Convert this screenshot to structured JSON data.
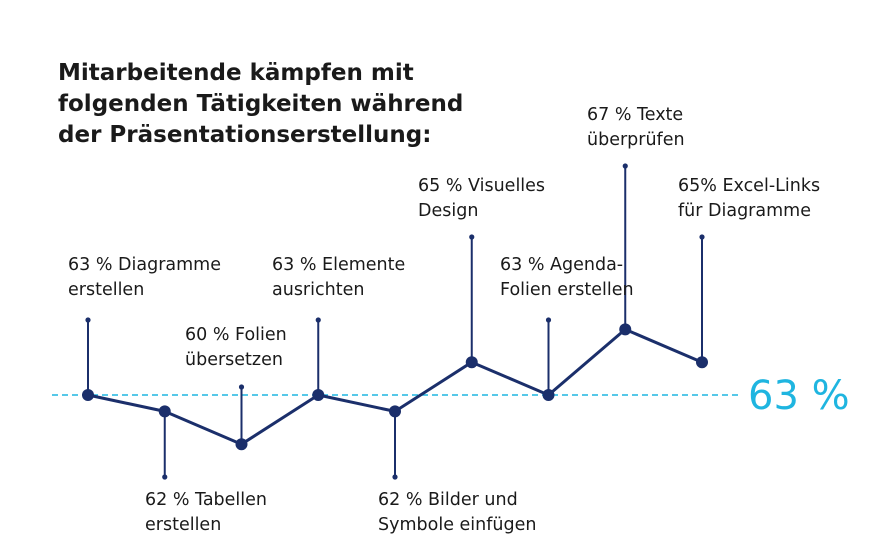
{
  "title_lines": [
    "Mitarbeitende kämpfen mit",
    "folgenden Tätigkeiten während",
    "der Präsentationserstellung:"
  ],
  "colors": {
    "line": "#1b2f6b",
    "average": "#1fb5e0",
    "text": "#1a1a1a"
  },
  "chart_data": {
    "type": "line",
    "title": "Mitarbeitende kämpfen mit folgenden Tätigkeiten während der Präsentationserstellung:",
    "ylim": [
      58,
      69
    ],
    "grid": false,
    "points": [
      {
        "value": 63,
        "label": [
          "63 % Diagramme",
          "erstellen"
        ],
        "label_side": "above"
      },
      {
        "value": 62,
        "label": [
          "62 % Tabellen",
          "erstellen"
        ],
        "label_side": "below"
      },
      {
        "value": 60,
        "label": [
          "60 % Folien",
          "übersetzen"
        ],
        "label_side": "above"
      },
      {
        "value": 63,
        "label": [
          "63 % Elemente",
          "ausrichten"
        ],
        "label_side": "above"
      },
      {
        "value": 62,
        "label": [
          "62 % Bilder und",
          "Symbole einfügen"
        ],
        "label_side": "below"
      },
      {
        "value": 65,
        "label": [
          "65 % Visuelles",
          "Design"
        ],
        "label_side": "above"
      },
      {
        "value": 63,
        "label": [
          "63 % Agenda-",
          "Folien erstellen"
        ],
        "label_side": "above"
      },
      {
        "value": 67,
        "label": [
          "67 % Texte",
          "überprüfen"
        ],
        "label_side": "above"
      },
      {
        "value": 65,
        "label": [
          "65% Excel-Links",
          "für Diagramme"
        ],
        "label_side": "above"
      }
    ],
    "average": {
      "value": 63,
      "label": "63 %"
    }
  }
}
